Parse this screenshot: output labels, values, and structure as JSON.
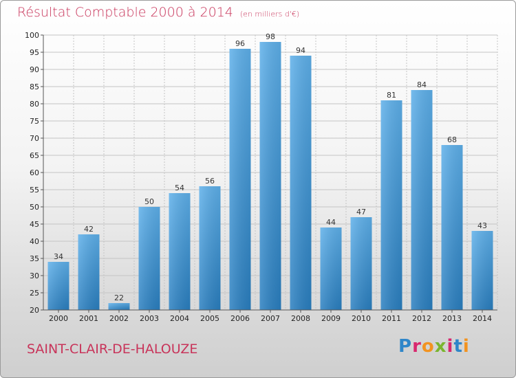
{
  "header": {
    "title": "Résultat Comptable 2000 à 2014",
    "subtitle": "(en milliers d'€)"
  },
  "footer": {
    "commune": "SAINT-CLAIR-DE-HALOUZE",
    "brand": "Proxiti"
  },
  "colors": {
    "bar": "#3f98dc",
    "title": "#c8345a",
    "grid": "#c4c4c4"
  },
  "chart_data": {
    "type": "bar",
    "title": "Résultat Comptable 2000 à 2014",
    "subtitle": "(en milliers d'€)",
    "categories": [
      "2000",
      "2001",
      "2002",
      "2003",
      "2004",
      "2005",
      "2006",
      "2007",
      "2008",
      "2009",
      "2010",
      "2011",
      "2012",
      "2013",
      "2014"
    ],
    "values": [
      34,
      42,
      22,
      50,
      54,
      56,
      96,
      98,
      94,
      44,
      47,
      81,
      84,
      68,
      43
    ],
    "ylim": [
      20,
      100
    ],
    "yticks": [
      20,
      25,
      30,
      35,
      40,
      45,
      50,
      55,
      60,
      65,
      70,
      75,
      80,
      85,
      90,
      95,
      100
    ],
    "grid": true,
    "legend": "none"
  }
}
